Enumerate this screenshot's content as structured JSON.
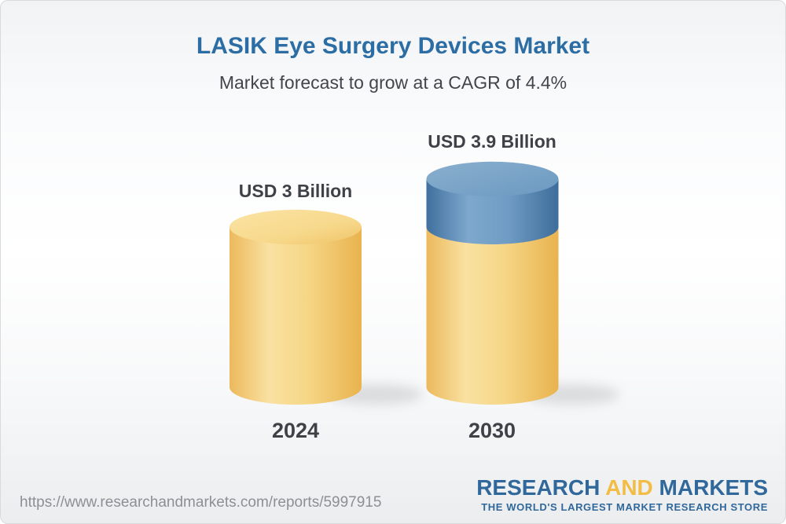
{
  "header": {
    "title": "LASIK Eye Surgery Devices Market",
    "subtitle": "Market forecast to grow at a CAGR of 4.4%"
  },
  "chart_data": {
    "type": "bar",
    "subtype": "3d-cylinder-stacked",
    "title": "LASIK Eye Surgery Devices Market",
    "subtitle": "Market forecast to grow at a CAGR of 4.4%",
    "unit": "USD Billion",
    "cagr_pct": 4.4,
    "categories": [
      "2024",
      "2030"
    ],
    "values": [
      3.0,
      3.9
    ],
    "value_labels": [
      "USD 3 Billion",
      "USD 3.9 Billion"
    ],
    "legend": "none",
    "axes": "none",
    "grid": false,
    "colors": {
      "base_segment": "#F3CF7D",
      "growth_segment": "#5E8CB7",
      "label_text": "#3E4247",
      "title_text": "#2C6DA4"
    },
    "segments": [
      {
        "category": "2024",
        "parts": [
          {
            "role": "base",
            "value": 3.0
          }
        ]
      },
      {
        "category": "2030",
        "parts": [
          {
            "role": "base",
            "value": 3.0
          },
          {
            "role": "growth",
            "value": 0.9
          }
        ]
      }
    ]
  },
  "footer": {
    "url": "https://www.researchandmarkets.com/reports/5997915",
    "logo": {
      "research": "RESEARCH",
      "and": "AND",
      "markets": "MARKETS",
      "tagline": "THE WORLD'S LARGEST MARKET RESEARCH STORE"
    }
  }
}
